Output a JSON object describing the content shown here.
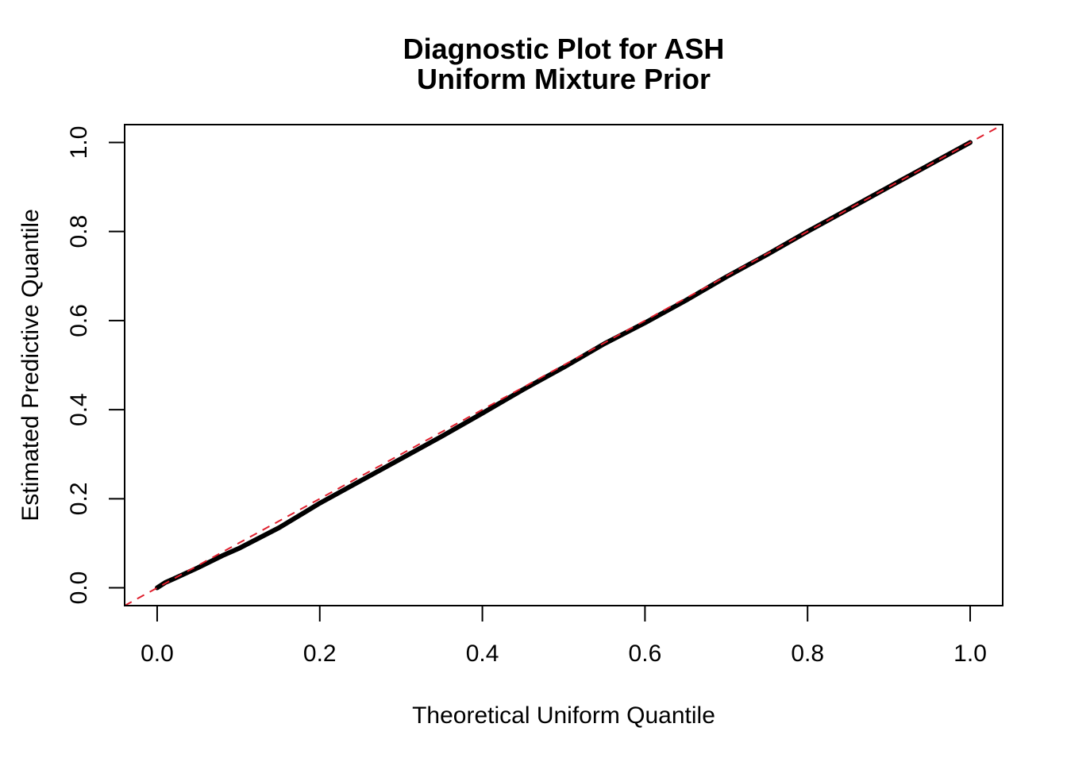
{
  "chart_data": {
    "type": "line",
    "title": "Diagnostic Plot for ASH",
    "subtitle": "Uniform Mixture Prior",
    "xlabel": "Theoretical Uniform Quantile",
    "ylabel": "Estimated Predictive Quantile",
    "xlim": [
      -0.04,
      1.04
    ],
    "ylim": [
      -0.04,
      1.04
    ],
    "x_ticks": [
      0.0,
      0.2,
      0.4,
      0.6,
      0.8,
      1.0
    ],
    "y_ticks": [
      0.0,
      0.2,
      0.4,
      0.6,
      0.8,
      1.0
    ],
    "x_tick_labels": [
      "0.0",
      "0.2",
      "0.4",
      "0.6",
      "0.8",
      "1.0"
    ],
    "y_tick_labels": [
      "0.0",
      "0.2",
      "0.4",
      "0.6",
      "0.8",
      "1.0"
    ],
    "grid": false,
    "series": [
      {
        "style": "thick-black",
        "color": "#000000",
        "x": [
          0.0,
          0.01,
          0.02,
          0.05,
          0.08,
          0.1,
          0.15,
          0.2,
          0.25,
          0.3,
          0.35,
          0.4,
          0.45,
          0.5,
          0.55,
          0.6,
          0.65,
          0.7,
          0.75,
          0.8,
          0.85,
          0.9,
          0.95,
          1.0
        ],
        "y": [
          0.0,
          0.012,
          0.02,
          0.045,
          0.072,
          0.088,
          0.135,
          0.19,
          0.24,
          0.29,
          0.34,
          0.392,
          0.445,
          0.495,
          0.548,
          0.595,
          0.645,
          0.698,
          0.748,
          0.8,
          0.85,
          0.9,
          0.95,
          1.0
        ]
      }
    ],
    "reference_line": {
      "intercept": 0,
      "slope": 1,
      "color": "#DF1F2D",
      "style": "dashed"
    }
  }
}
